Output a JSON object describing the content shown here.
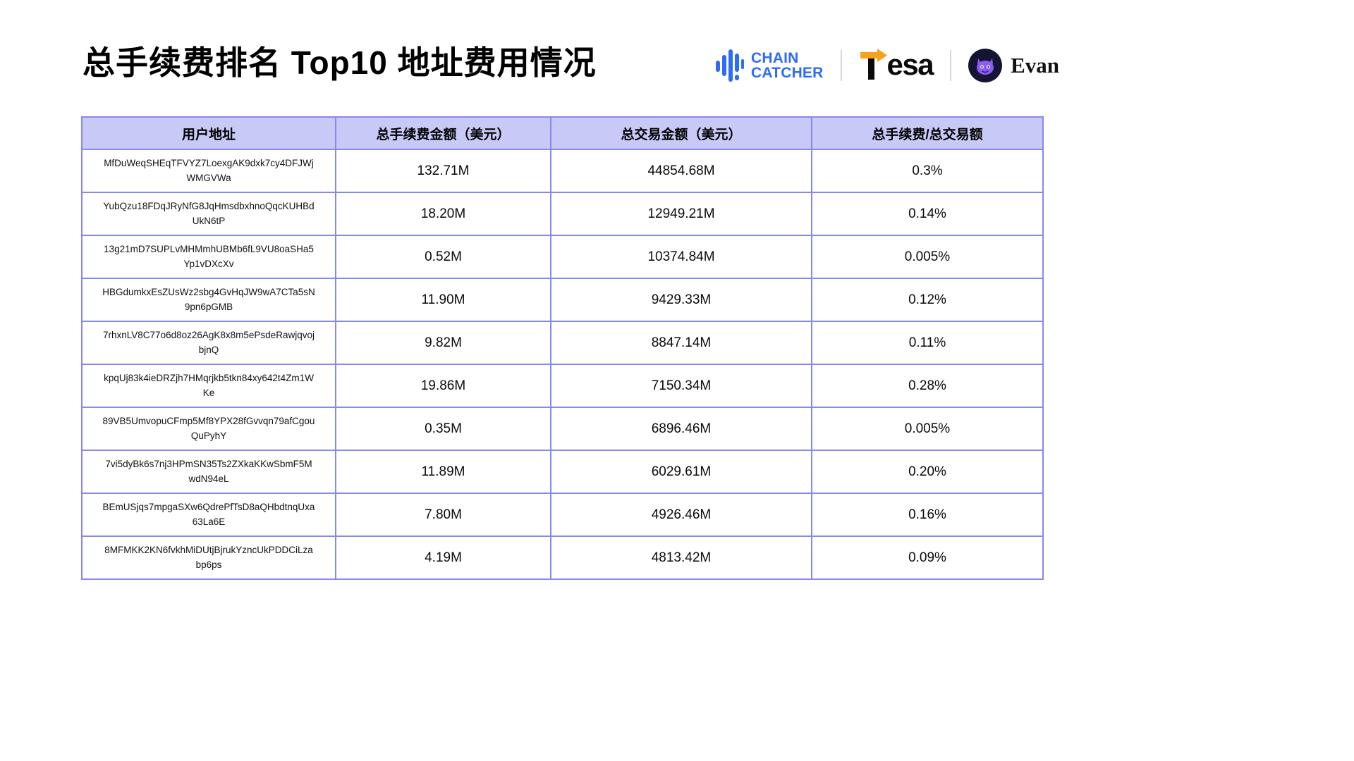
{
  "page": {
    "title": "总手续费排名 Top10 地址费用情况"
  },
  "brand": {
    "chaincatcher_line1": "CHAIN",
    "chaincatcher_line2": "CATCHER",
    "tesa_text": "esa",
    "evan_label": "Evan"
  },
  "chart_data": {
    "type": "table",
    "title": "总手续费排名 Top10 地址费用情况",
    "columns": [
      "用户地址",
      "总手续费金额（美元）",
      "总交易金额（美元）",
      "总手续费/总交易额"
    ],
    "rows": [
      [
        "MfDuWeqSHEqTFVYZ7LoexgAK9dxk7cy4DFJWjWMGVWa",
        "132.71M",
        "44854.68M",
        "0.3%"
      ],
      [
        "YubQzu18FDqJRyNfG8JqHmsdbxhnoQqcKUHBdUkN6tP",
        "18.20M",
        "12949.21M",
        "0.14%"
      ],
      [
        "13g21mD7SUPLvMHMmhUBMb6fL9VU8oaSHa5Yp1vDXcXv",
        "0.52M",
        "10374.84M",
        "0.005%"
      ],
      [
        "HBGdumkxEsZUsWz2sbg4GvHqJW9wA7CTa5sN9pn6pGMB",
        "11.90M",
        "9429.33M",
        "0.12%"
      ],
      [
        "7rhxnLV8C77o6d8oz26AgK8x8m5ePsdeRawjqvojbjnQ",
        "9.82M",
        "8847.14M",
        "0.11%"
      ],
      [
        "kpqUj83k4ieDRZjh7HMqrjkb5tkn84xy642t4Zm1WKe",
        "19.86M",
        "7150.34M",
        "0.28%"
      ],
      [
        "89VB5UmvopuCFmp5Mf8YPX28fGvvqn79afCgouQuPyhY",
        "0.35M",
        "6896.46M",
        "0.005%"
      ],
      [
        "7vi5dyBk6s7nj3HPmSN35Ts2ZXkaKKwSbmF5MwdN94eL",
        "11.89M",
        "6029.61M",
        "0.20%"
      ],
      [
        "BEmUSjqs7mpgaSXw6QdrePfTsD8aQHbdtnqUxa63La6E",
        "7.80M",
        "4926.46M",
        "0.16%"
      ],
      [
        "8MFMKK2KN6fvkhMiDUtjBjrukYzncUkPDDCiLzabp6ps",
        "4.19M",
        "4813.42M",
        "0.09%"
      ]
    ]
  },
  "colors": {
    "header_bg": "#c9c9f8",
    "border": "#8589ef",
    "brand_blue": "#2e6cf6",
    "arrow_orange": "#f5a11c"
  }
}
